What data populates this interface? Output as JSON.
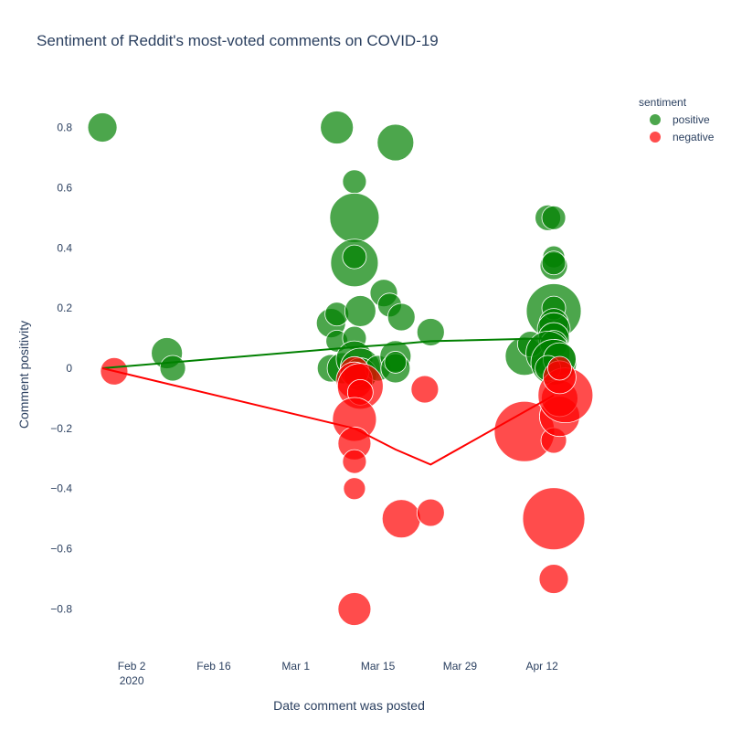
{
  "chart_data": {
    "type": "scatter",
    "title": "Sentiment of Reddit's most-voted comments on COVID-19",
    "xlabel": "Date comment was posted",
    "ylabel": "Comment positivity",
    "xlim": [
      "2020-01-23",
      "2020-04-26"
    ],
    "ylim": [
      -0.92,
      0.92
    ],
    "x_ticks": [
      {
        "date": "2020-02-02",
        "label": "Feb 2",
        "sublabel": "2020"
      },
      {
        "date": "2020-02-16",
        "label": "Feb 16",
        "sublabel": ""
      },
      {
        "date": "2020-03-01",
        "label": "Mar 1",
        "sublabel": ""
      },
      {
        "date": "2020-03-15",
        "label": "Mar 15",
        "sublabel": ""
      },
      {
        "date": "2020-03-29",
        "label": "Mar 29",
        "sublabel": ""
      },
      {
        "date": "2020-04-12",
        "label": "Apr 12",
        "sublabel": ""
      }
    ],
    "y_ticks": [
      {
        "value": 0.8,
        "label": "0.8"
      },
      {
        "value": 0.6,
        "label": "0.6"
      },
      {
        "value": 0.4,
        "label": "0.4"
      },
      {
        "value": 0.2,
        "label": "0.2"
      },
      {
        "value": 0,
        "label": "0"
      },
      {
        "value": -0.2,
        "label": "−0.2"
      },
      {
        "value": -0.4,
        "label": "−0.4"
      },
      {
        "value": -0.6,
        "label": "−0.6"
      },
      {
        "value": -0.8,
        "label": "−0.8"
      }
    ],
    "grid": false,
    "legend": {
      "title": "sentiment",
      "placement": "top-right"
    },
    "series": [
      {
        "name": "positive",
        "color": "#008000",
        "points": [
          {
            "date": "2020-01-28",
            "y": 0.8,
            "size": 16
          },
          {
            "date": "2020-02-08",
            "y": 0.05,
            "size": 17
          },
          {
            "date": "2020-02-09",
            "y": 0.0,
            "size": 14
          },
          {
            "date": "2020-03-08",
            "y": 0.8,
            "size": 18
          },
          {
            "date": "2020-03-07",
            "y": 0.15,
            "size": 16
          },
          {
            "date": "2020-03-08",
            "y": 0.18,
            "size": 13
          },
          {
            "date": "2020-03-08",
            "y": 0.09,
            "size": 12
          },
          {
            "date": "2020-03-07",
            "y": 0.0,
            "size": 15
          },
          {
            "date": "2020-03-09",
            "y": 0.0,
            "size": 17
          },
          {
            "date": "2020-03-11",
            "y": 0.62,
            "size": 13
          },
          {
            "date": "2020-03-11",
            "y": 0.5,
            "size": 27
          },
          {
            "date": "2020-03-11",
            "y": 0.35,
            "size": 26
          },
          {
            "date": "2020-03-11",
            "y": 0.37,
            "size": 13
          },
          {
            "date": "2020-03-11",
            "y": 0.1,
            "size": 13
          },
          {
            "date": "2020-03-11",
            "y": 0.03,
            "size": 20
          },
          {
            "date": "2020-03-12",
            "y": 0.0,
            "size": 22
          },
          {
            "date": "2020-03-12",
            "y": -0.02,
            "size": 18
          },
          {
            "date": "2020-03-12",
            "y": 0.19,
            "size": 17
          },
          {
            "date": "2020-03-15",
            "y": 0.0,
            "size": 14
          },
          {
            "date": "2020-03-16",
            "y": 0.25,
            "size": 15
          },
          {
            "date": "2020-03-17",
            "y": 0.21,
            "size": 13
          },
          {
            "date": "2020-03-18",
            "y": 0.04,
            "size": 17
          },
          {
            "date": "2020-03-18",
            "y": 0.0,
            "size": 16
          },
          {
            "date": "2020-03-18",
            "y": 0.02,
            "size": 12
          },
          {
            "date": "2020-03-19",
            "y": 0.17,
            "size": 15
          },
          {
            "date": "2020-03-18",
            "y": 0.75,
            "size": 20
          },
          {
            "date": "2020-03-24",
            "y": 0.12,
            "size": 15
          },
          {
            "date": "2020-04-09",
            "y": 0.04,
            "size": 21
          },
          {
            "date": "2020-04-10",
            "y": 0.08,
            "size": 14
          },
          {
            "date": "2020-04-13",
            "y": 0.5,
            "size": 14
          },
          {
            "date": "2020-04-14",
            "y": 0.5,
            "size": 13
          },
          {
            "date": "2020-04-14",
            "y": 0.37,
            "size": 12
          },
          {
            "date": "2020-04-14",
            "y": 0.34,
            "size": 15
          },
          {
            "date": "2020-04-14",
            "y": 0.35,
            "size": 13
          },
          {
            "date": "2020-04-14",
            "y": 0.19,
            "size": 30
          },
          {
            "date": "2020-04-14",
            "y": 0.2,
            "size": 13
          },
          {
            "date": "2020-04-14",
            "y": 0.15,
            "size": 16
          },
          {
            "date": "2020-04-14",
            "y": 0.13,
            "size": 18
          },
          {
            "date": "2020-04-14",
            "y": 0.1,
            "size": 17
          },
          {
            "date": "2020-04-14",
            "y": 0.08,
            "size": 15
          },
          {
            "date": "2020-04-13",
            "y": 0.05,
            "size": 24
          },
          {
            "date": "2020-04-14",
            "y": 0.02,
            "size": 25
          },
          {
            "date": "2020-04-15",
            "y": 0.03,
            "size": 18
          },
          {
            "date": "2020-04-13",
            "y": 0.0,
            "size": 14
          }
        ],
        "trend": [
          {
            "date": "2020-01-28",
            "y": 0.0
          },
          {
            "date": "2020-03-11",
            "y": 0.07
          },
          {
            "date": "2020-03-18",
            "y": 0.08
          },
          {
            "date": "2020-03-24",
            "y": 0.09
          },
          {
            "date": "2020-04-14",
            "y": 0.1
          }
        ]
      },
      {
        "name": "negative",
        "color": "#ff0000",
        "points": [
          {
            "date": "2020-01-30",
            "y": -0.01,
            "size": 15
          },
          {
            "date": "2020-03-11",
            "y": -0.01,
            "size": 16
          },
          {
            "date": "2020-03-11",
            "y": -0.04,
            "size": 20
          },
          {
            "date": "2020-03-12",
            "y": -0.06,
            "size": 25
          },
          {
            "date": "2020-03-12",
            "y": -0.08,
            "size": 14
          },
          {
            "date": "2020-03-11",
            "y": -0.17,
            "size": 24
          },
          {
            "date": "2020-03-11",
            "y": -0.25,
            "size": 18
          },
          {
            "date": "2020-03-11",
            "y": -0.31,
            "size": 13
          },
          {
            "date": "2020-03-11",
            "y": -0.4,
            "size": 12
          },
          {
            "date": "2020-03-11",
            "y": -0.8,
            "size": 18
          },
          {
            "date": "2020-03-19",
            "y": -0.5,
            "size": 21
          },
          {
            "date": "2020-03-23",
            "y": -0.07,
            "size": 15
          },
          {
            "date": "2020-03-24",
            "y": -0.48,
            "size": 15
          },
          {
            "date": "2020-04-09",
            "y": -0.21,
            "size": 33
          },
          {
            "date": "2020-04-14",
            "y": -0.5,
            "size": 34
          },
          {
            "date": "2020-04-14",
            "y": -0.7,
            "size": 16
          },
          {
            "date": "2020-04-14",
            "y": -0.24,
            "size": 14
          },
          {
            "date": "2020-04-15",
            "y": -0.16,
            "size": 22
          },
          {
            "date": "2020-04-15",
            "y": -0.1,
            "size": 20
          },
          {
            "date": "2020-04-16",
            "y": -0.09,
            "size": 30
          },
          {
            "date": "2020-04-15",
            "y": -0.03,
            "size": 18
          },
          {
            "date": "2020-04-15",
            "y": 0.0,
            "size": 13
          }
        ],
        "trend": [
          {
            "date": "2020-01-28",
            "y": 0.0
          },
          {
            "date": "2020-03-11",
            "y": -0.2
          },
          {
            "date": "2020-03-18",
            "y": -0.27
          },
          {
            "date": "2020-03-24",
            "y": -0.32
          },
          {
            "date": "2020-04-14",
            "y": -0.09
          }
        ]
      }
    ]
  }
}
